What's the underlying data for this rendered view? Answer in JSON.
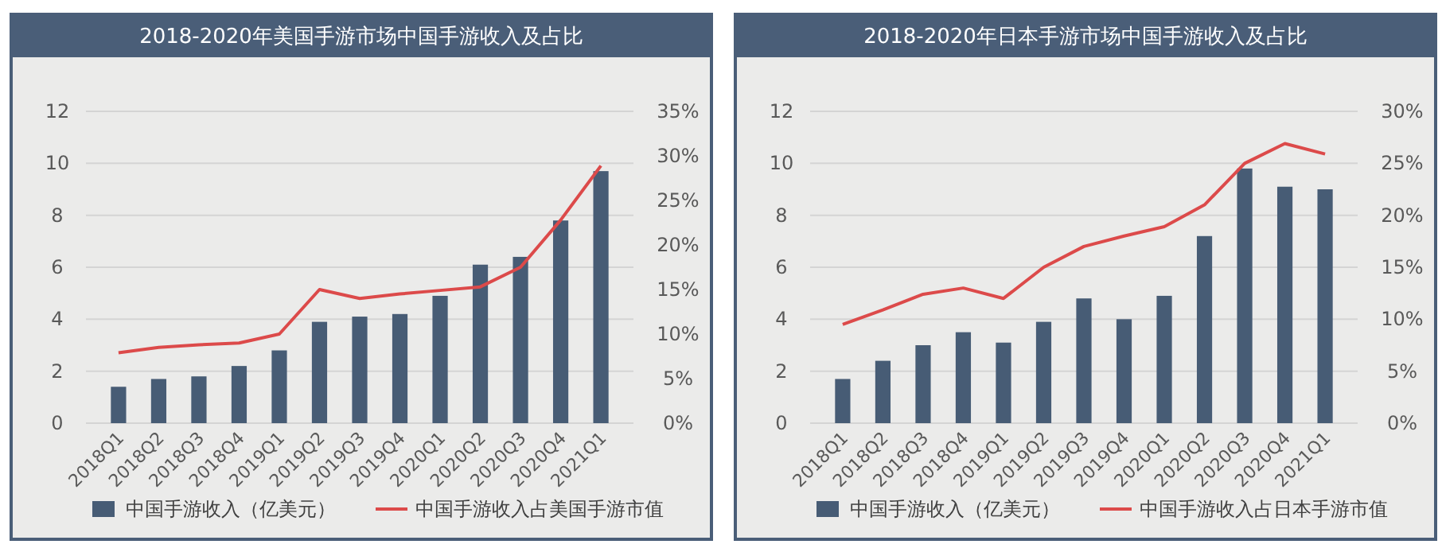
{
  "chart_data": [
    {
      "type": "bar",
      "title": "2018-2020年美国手游市场中国手游收入及占比",
      "categories": [
        "2018Q1",
        "2018Q2",
        "2018Q3",
        "2018Q4",
        "2019Q1",
        "2019Q2",
        "2019Q3",
        "2019Q4",
        "2020Q1",
        "2020Q2",
        "2020Q3",
        "2020Q4",
        "2021Q1"
      ],
      "series": [
        {
          "name": "中国手游收入（亿美元）",
          "color": "#475c75",
          "values": [
            1.4,
            1.7,
            1.8,
            2.2,
            2.8,
            3.9,
            4.1,
            4.2,
            4.9,
            6.1,
            6.4,
            7.8,
            9.7
          ]
        },
        {
          "name": "中国手游收入占美国手游市值",
          "type": "line",
          "axis": "y2",
          "color": "#dc4a4a",
          "values": [
            7.9,
            8.5,
            8.8,
            9.0,
            10.0,
            15.0,
            14.0,
            14.5,
            14.9,
            15.3,
            17.5,
            22.8,
            28.9
          ]
        }
      ],
      "ylim": [
        0,
        12
      ],
      "yticks": [
        0,
        2,
        4,
        6,
        8,
        10,
        12
      ],
      "y2lim": [
        0,
        35
      ],
      "y2ticks": [
        {
          "value": 0,
          "label": "0%"
        },
        {
          "value": 5,
          "label": "5%"
        },
        {
          "value": 10,
          "label": "10%"
        },
        {
          "value": 15,
          "label": "15%"
        },
        {
          "value": 20,
          "label": "20%"
        },
        {
          "value": 25,
          "label": "25%"
        },
        {
          "value": 30,
          "label": "30%"
        },
        {
          "value": 35,
          "label": "35%"
        }
      ],
      "grid": "y",
      "legend": "bottom"
    },
    {
      "type": "bar",
      "title": "2018-2020年日本手游市场中国手游收入及占比",
      "categories": [
        "2018Q1",
        "2018Q2",
        "2018Q3",
        "2018Q4",
        "2019Q1",
        "2019Q2",
        "2019Q3",
        "2019Q4",
        "2020Q1",
        "2020Q2",
        "2020Q3",
        "2020Q4",
        "2021Q1"
      ],
      "series": [
        {
          "name": "中国手游收入（亿美元）",
          "color": "#475c75",
          "values": [
            1.7,
            2.4,
            3.0,
            3.5,
            3.1,
            3.9,
            4.8,
            4.0,
            4.9,
            7.2,
            9.8,
            9.1,
            9.0
          ]
        },
        {
          "name": "中国手游收入占日本手游市值",
          "type": "line",
          "axis": "y2",
          "color": "#dc4a4a",
          "values": [
            9.5,
            10.9,
            12.4,
            13.0,
            12.0,
            15.0,
            17.0,
            18.0,
            18.9,
            21.0,
            25.0,
            26.9,
            25.9
          ]
        }
      ],
      "ylim": [
        0,
        12
      ],
      "yticks": [
        0,
        2,
        4,
        6,
        8,
        10,
        12
      ],
      "y2lim": [
        0,
        30
      ],
      "y2ticks": [
        {
          "value": 0,
          "label": "0%"
        },
        {
          "value": 5,
          "label": "5%"
        },
        {
          "value": 10,
          "label": "10%"
        },
        {
          "value": 15,
          "label": "15%"
        },
        {
          "value": 20,
          "label": "20%"
        },
        {
          "value": 25,
          "label": "25%"
        },
        {
          "value": 30,
          "label": "30%"
        }
      ],
      "grid": "y",
      "legend": "bottom"
    }
  ]
}
